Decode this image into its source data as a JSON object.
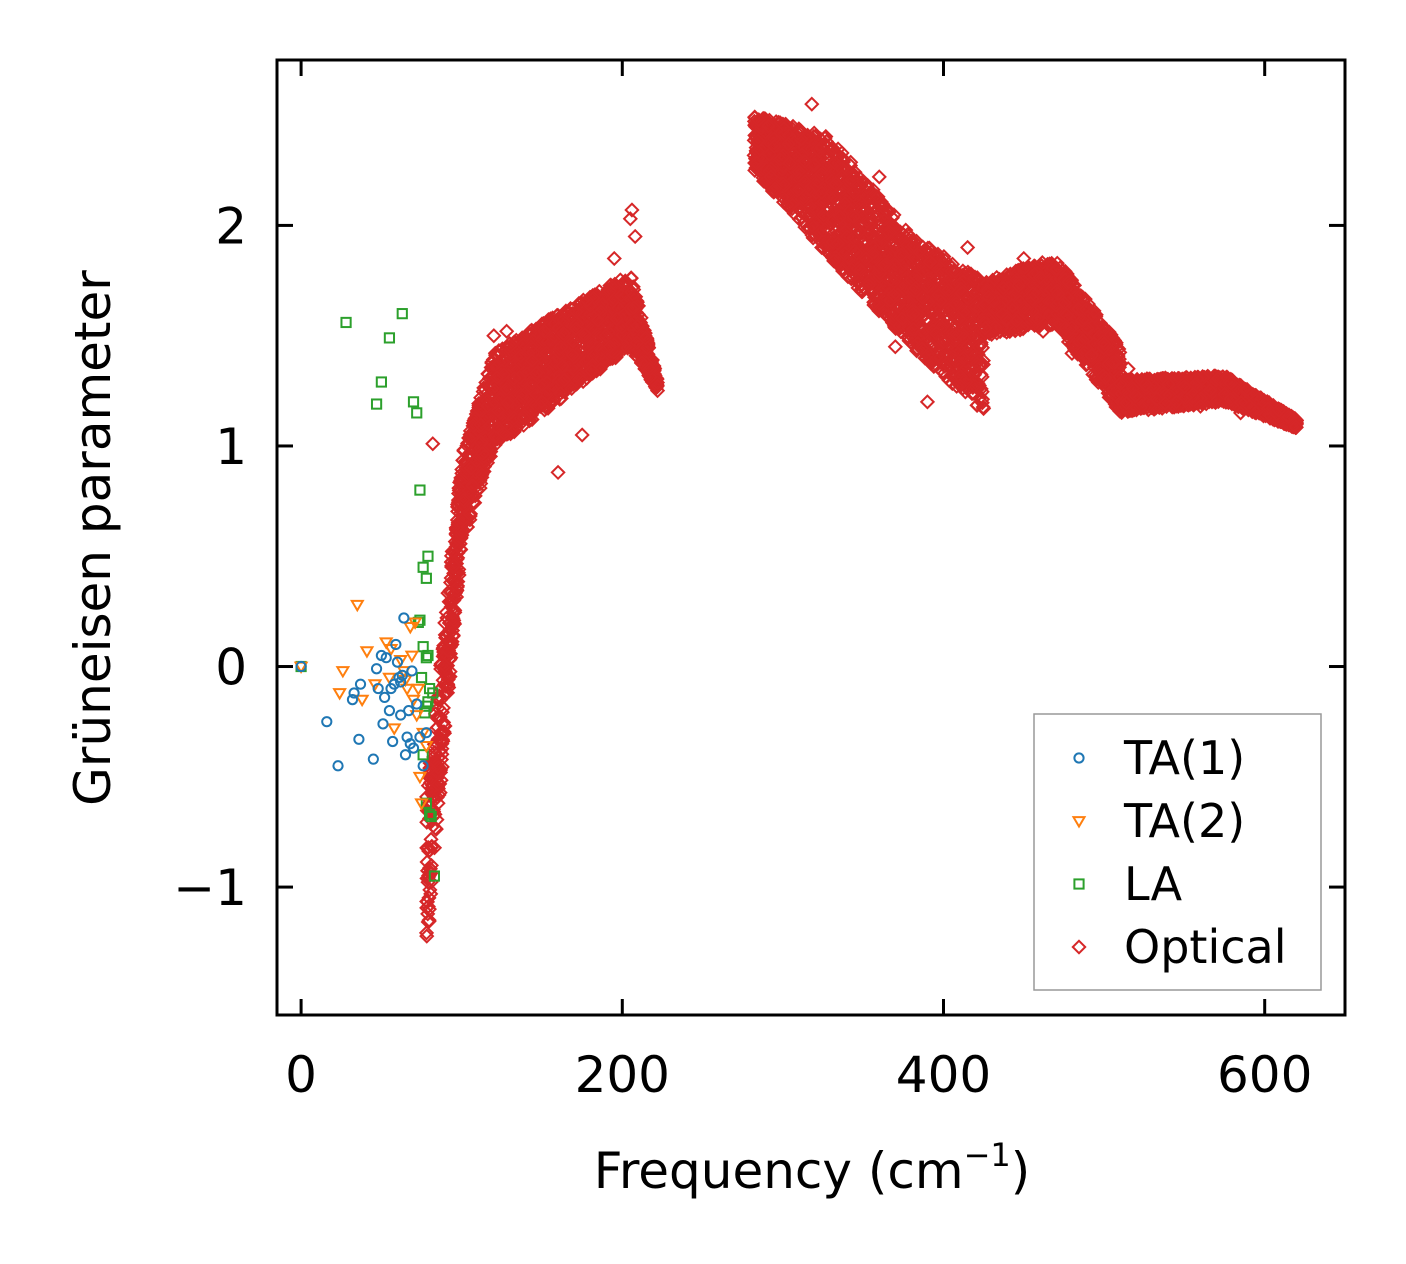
{
  "chart_data": {
    "type": "scatter",
    "title": "",
    "xlabel": "Frequency (cm",
    "xlabel_sup": "−1",
    "xlabel_end": ")",
    "ylabel": "Grüneisen parameter",
    "xlim": [
      -15,
      650
    ],
    "ylim": [
      -1.58,
      2.75
    ],
    "xticks": [
      0,
      200,
      400,
      600
    ],
    "xtick_labels": [
      "0",
      "200",
      "400",
      "600"
    ],
    "yticks": [
      -1,
      0,
      1,
      2
    ],
    "ytick_labels": [
      "−1",
      "0",
      "1",
      "2"
    ],
    "grid": false,
    "legend_position": "bottom-right",
    "series": [
      {
        "name": "TA(1)",
        "marker": "circle",
        "color": "#1f77b4",
        "points": [
          [
            0,
            0.0
          ],
          [
            16,
            -0.25
          ],
          [
            23,
            -0.45
          ],
          [
            32,
            -0.15
          ],
          [
            33,
            -0.12
          ],
          [
            36,
            -0.33
          ],
          [
            37,
            -0.08
          ],
          [
            45,
            -0.42
          ],
          [
            47,
            -0.01
          ],
          [
            48,
            -0.1
          ],
          [
            50,
            0.05
          ],
          [
            51,
            -0.26
          ],
          [
            52,
            -0.14
          ],
          [
            55,
            -0.2
          ],
          [
            57,
            -0.34
          ],
          [
            58,
            -0.08
          ],
          [
            59,
            0.1
          ],
          [
            60,
            0.02
          ],
          [
            61,
            -0.05
          ],
          [
            62,
            -0.22
          ],
          [
            63,
            -0.04
          ],
          [
            64,
            0.22
          ],
          [
            65,
            -0.4
          ],
          [
            66,
            -0.32
          ],
          [
            67,
            -0.2
          ],
          [
            68,
            -0.35
          ],
          [
            69,
            -0.02
          ],
          [
            70,
            -0.37
          ],
          [
            72,
            -0.17
          ],
          [
            74,
            -0.32
          ],
          [
            76,
            -0.45
          ],
          [
            78,
            -0.3
          ],
          [
            56,
            -0.1
          ],
          [
            53,
            0.04
          ],
          [
            62,
            -0.07
          ]
        ]
      },
      {
        "name": "TA(2)",
        "marker": "triangle_down",
        "color": "#ff7f0e",
        "points": [
          [
            0,
            0.0
          ],
          [
            24,
            -0.12
          ],
          [
            26,
            -0.02
          ],
          [
            35,
            0.28
          ],
          [
            38,
            -0.15
          ],
          [
            41,
            0.07
          ],
          [
            46,
            -0.08
          ],
          [
            53,
            0.11
          ],
          [
            55,
            -0.05
          ],
          [
            56,
            0.08
          ],
          [
            58,
            -0.28
          ],
          [
            62,
            0.03
          ],
          [
            64,
            -0.02
          ],
          [
            66,
            -0.1
          ],
          [
            68,
            0.18
          ],
          [
            70,
            -0.15
          ],
          [
            71,
            0.2
          ],
          [
            72,
            -0.22
          ],
          [
            74,
            -0.5
          ],
          [
            75,
            -0.62
          ],
          [
            76,
            -0.3
          ],
          [
            78,
            -0.36
          ],
          [
            65,
            -0.06
          ],
          [
            69,
            0.05
          ],
          [
            73,
            -0.1
          ]
        ]
      },
      {
        "name": "LA",
        "marker": "square",
        "color": "#2ca02c",
        "points": [
          [
            0,
            0.0
          ],
          [
            28,
            1.56
          ],
          [
            47,
            1.19
          ],
          [
            50,
            1.29
          ],
          [
            55,
            1.49
          ],
          [
            63,
            1.6
          ],
          [
            70,
            1.2
          ],
          [
            72,
            1.15
          ],
          [
            74,
            0.8
          ],
          [
            76,
            0.45
          ],
          [
            78,
            0.4
          ],
          [
            79,
            0.5
          ],
          [
            73,
            0.2
          ],
          [
            74,
            0.21
          ],
          [
            76,
            0.09
          ],
          [
            78,
            0.04
          ],
          [
            79,
            0.05
          ],
          [
            80,
            -0.1
          ],
          [
            82,
            -0.12
          ],
          [
            78,
            -0.18
          ],
          [
            77,
            -0.21
          ],
          [
            76,
            -0.4
          ],
          [
            78,
            -0.62
          ],
          [
            80,
            -0.67
          ],
          [
            81,
            -0.68
          ],
          [
            83,
            -0.95
          ],
          [
            79,
            -0.16
          ],
          [
            75,
            -0.05
          ]
        ]
      },
      {
        "name": "Optical",
        "marker": "diamond",
        "color": "#d62728",
        "points": [],
        "note": "Dense cloud of several thousand points; outline below describes the band shape in data units.",
        "band": {
          "segments": [
            {
              "x": [
                78,
                100
              ],
              "y_low": [
                -1.3,
                0.55
              ],
              "y_high": [
                -0.6,
                0.95
              ]
            },
            {
              "x": [
                100,
                120
              ],
              "y_low": [
                0.55,
                1.0
              ],
              "y_high": [
                0.95,
                1.42
              ]
            },
            {
              "x": [
                120,
                160
              ],
              "y_low": [
                1.0,
                1.2
              ],
              "y_high": [
                1.42,
                1.6
              ]
            },
            {
              "x": [
                160,
                205
              ],
              "y_low": [
                1.2,
                1.45
              ],
              "y_high": [
                1.6,
                1.78
              ]
            },
            {
              "x": [
                205,
                222
              ],
              "y_low": [
                1.45,
                1.25
              ],
              "y_high": [
                1.78,
                1.3
              ]
            },
            {
              "x": [
                282,
                330
              ],
              "y_low": [
                2.25,
                1.85
              ],
              "y_high": [
                2.5,
                2.4
              ]
            },
            {
              "x": [
                330,
                380
              ],
              "y_low": [
                1.85,
                1.45
              ],
              "y_high": [
                2.4,
                1.95
              ]
            },
            {
              "x": [
                380,
                425
              ],
              "y_low": [
                1.45,
                1.15
              ],
              "y_high": [
                1.95,
                1.75
              ]
            },
            {
              "x": [
                425,
                470
              ],
              "y_low": [
                1.5,
                1.55
              ],
              "y_high": [
                1.75,
                1.85
              ]
            },
            {
              "x": [
                470,
                510
              ],
              "y_low": [
                1.55,
                1.15
              ],
              "y_high": [
                1.85,
                1.45
              ]
            },
            {
              "x": [
                510,
                575
              ],
              "y_low": [
                1.15,
                1.2
              ],
              "y_high": [
                1.3,
                1.32
              ]
            },
            {
              "x": [
                575,
                620
              ],
              "y_low": [
                1.2,
                1.08
              ],
              "y_high": [
                1.32,
                1.12
              ]
            }
          ],
          "outliers": [
            [
              82,
              1.01
            ],
            [
              120,
              1.5
            ],
            [
              128,
              1.52
            ],
            [
              160,
              0.88
            ],
            [
              175,
              1.05
            ],
            [
              178,
              1.66
            ],
            [
              195,
              1.85
            ],
            [
              205,
              2.03
            ],
            [
              206,
              2.07
            ],
            [
              208,
              1.95
            ],
            [
              318,
              2.55
            ],
            [
              350,
              2.2
            ],
            [
              360,
              2.22
            ],
            [
              370,
              1.45
            ],
            [
              390,
              1.2
            ],
            [
              415,
              1.9
            ],
            [
              450,
              1.85
            ],
            [
              462,
              1.52
            ],
            [
              480,
              1.42
            ],
            [
              515,
              1.35
            ],
            [
              540,
              1.28
            ],
            [
              560,
              1.18
            ],
            [
              585,
              1.15
            ]
          ]
        }
      }
    ]
  }
}
